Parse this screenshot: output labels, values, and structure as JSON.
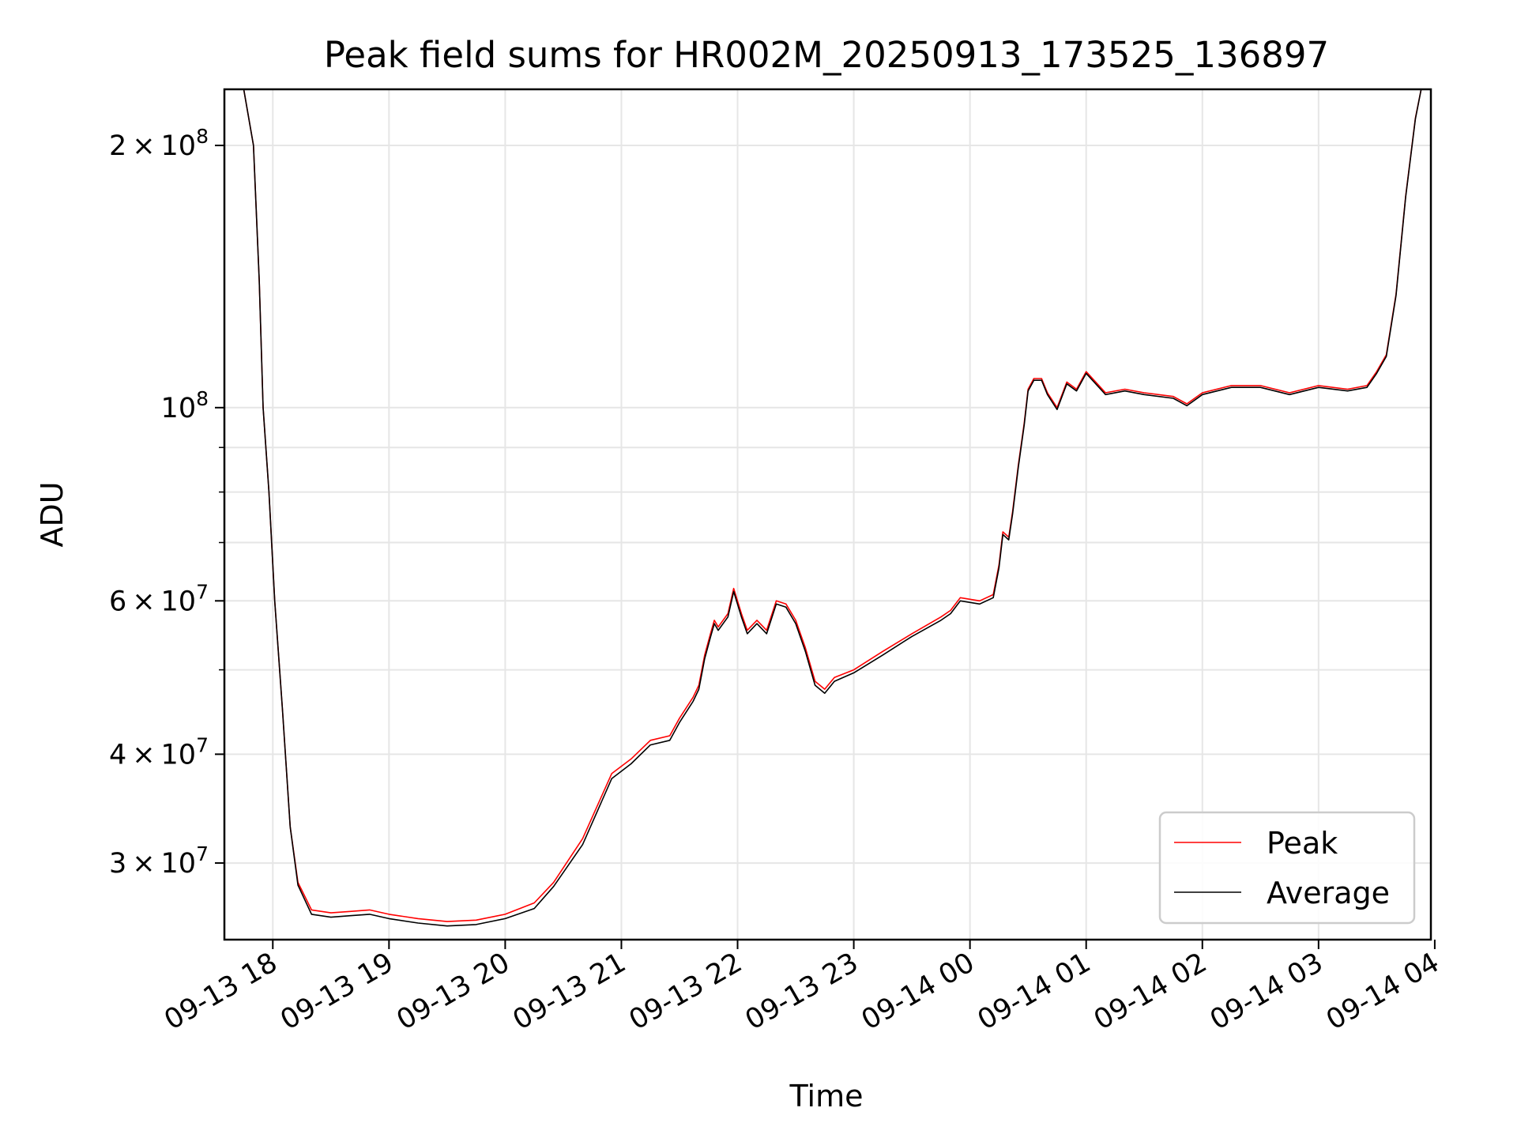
{
  "chart_data": {
    "type": "line",
    "title": "Peak field sums for HR002M_20250913_173525_136897",
    "xlabel": "Time",
    "ylabel": "ADU",
    "yscale": "log",
    "xlim": [
      "2025-09-13 17:35",
      "2025-09-14 03:58"
    ],
    "ylim": [
      24500000,
      232000000
    ],
    "grid": true,
    "legend_position": "lower-right",
    "x_ticks": [
      {
        "t": "2025-09-13 18:00",
        "label": "09-13 18"
      },
      {
        "t": "2025-09-13 19:00",
        "label": "09-13 19"
      },
      {
        "t": "2025-09-13 20:00",
        "label": "09-13 20"
      },
      {
        "t": "2025-09-13 21:00",
        "label": "09-13 21"
      },
      {
        "t": "2025-09-13 22:00",
        "label": "09-13 22"
      },
      {
        "t": "2025-09-13 23:00",
        "label": "09-13 23"
      },
      {
        "t": "2025-09-14 00:00",
        "label": "09-14 00"
      },
      {
        "t": "2025-09-14 01:00",
        "label": "09-14 01"
      },
      {
        "t": "2025-09-14 02:00",
        "label": "09-14 02"
      },
      {
        "t": "2025-09-14 03:00",
        "label": "09-14 03"
      },
      {
        "t": "2025-09-14 04:00",
        "label": "09-14 04"
      }
    ],
    "y_ticks_major": [
      {
        "v": 30000000,
        "mant": "3",
        "exp": "7"
      },
      {
        "v": 40000000,
        "mant": "4",
        "exp": "7"
      },
      {
        "v": 60000000,
        "mant": "6",
        "exp": "7"
      },
      {
        "v": 100000000,
        "mant": "",
        "exp": "8"
      },
      {
        "v": 200000000,
        "mant": "2",
        "exp": "8"
      }
    ],
    "y_ticks_minor": [
      50000000,
      70000000,
      80000000,
      90000000
    ],
    "series": [
      {
        "name": "Peak",
        "color": "#ff0000",
        "points": [
          [
            "2025-09-13 17:35",
            232000000
          ],
          [
            "2025-09-13 17:45",
            232000000
          ],
          [
            "2025-09-13 17:50",
            200000000
          ],
          [
            "2025-09-13 17:53",
            140000000
          ],
          [
            "2025-09-13 17:55",
            100000000
          ],
          [
            "2025-09-13 17:58",
            80000000
          ],
          [
            "2025-09-13 18:01",
            60000000
          ],
          [
            "2025-09-13 18:05",
            45000000
          ],
          [
            "2025-09-13 18:09",
            33000000
          ],
          [
            "2025-09-13 18:13",
            28500000
          ],
          [
            "2025-09-13 18:20",
            26500000
          ],
          [
            "2025-09-13 18:30",
            26300000
          ],
          [
            "2025-09-13 18:40",
            26400000
          ],
          [
            "2025-09-13 18:50",
            26500000
          ],
          [
            "2025-09-13 19:00",
            26200000
          ],
          [
            "2025-09-13 19:15",
            25900000
          ],
          [
            "2025-09-13 19:30",
            25700000
          ],
          [
            "2025-09-13 19:45",
            25800000
          ],
          [
            "2025-09-13 20:00",
            26200000
          ],
          [
            "2025-09-13 20:15",
            27000000
          ],
          [
            "2025-09-13 20:25",
            28500000
          ],
          [
            "2025-09-13 20:40",
            32000000
          ],
          [
            "2025-09-13 20:55",
            38000000
          ],
          [
            "2025-09-13 21:05",
            39500000
          ],
          [
            "2025-09-13 21:15",
            41500000
          ],
          [
            "2025-09-13 21:25",
            42000000
          ],
          [
            "2025-09-13 21:30",
            44000000
          ],
          [
            "2025-09-13 21:37",
            46500000
          ],
          [
            "2025-09-13 21:40",
            48000000
          ],
          [
            "2025-09-13 21:43",
            52000000
          ],
          [
            "2025-09-13 21:46",
            55000000
          ],
          [
            "2025-09-13 21:48",
            57000000
          ],
          [
            "2025-09-13 21:50",
            56000000
          ],
          [
            "2025-09-13 21:55",
            58000000
          ],
          [
            "2025-09-13 21:58",
            62000000
          ],
          [
            "2025-09-13 22:02",
            58000000
          ],
          [
            "2025-09-13 22:05",
            55500000
          ],
          [
            "2025-09-13 22:10",
            57000000
          ],
          [
            "2025-09-13 22:15",
            55500000
          ],
          [
            "2025-09-13 22:20",
            60000000
          ],
          [
            "2025-09-13 22:25",
            59500000
          ],
          [
            "2025-09-13 22:30",
            57000000
          ],
          [
            "2025-09-13 22:35",
            53000000
          ],
          [
            "2025-09-13 22:40",
            48500000
          ],
          [
            "2025-09-13 22:45",
            47500000
          ],
          [
            "2025-09-13 22:50",
            49000000
          ],
          [
            "2025-09-13 23:00",
            50000000
          ],
          [
            "2025-09-13 23:15",
            52500000
          ],
          [
            "2025-09-13 23:30",
            55000000
          ],
          [
            "2025-09-13 23:45",
            57500000
          ],
          [
            "2025-09-13 23:50",
            58500000
          ],
          [
            "2025-09-13 23:55",
            60500000
          ],
          [
            "2025-09-14 00:05",
            60000000
          ],
          [
            "2025-09-14 00:12",
            61000000
          ],
          [
            "2025-09-14 00:15",
            66000000
          ],
          [
            "2025-09-14 00:17",
            72000000
          ],
          [
            "2025-09-14 00:20",
            71000000
          ],
          [
            "2025-09-14 00:22",
            76000000
          ],
          [
            "2025-09-14 00:25",
            86000000
          ],
          [
            "2025-09-14 00:28",
            96000000
          ],
          [
            "2025-09-14 00:30",
            105000000
          ],
          [
            "2025-09-14 00:33",
            108000000
          ],
          [
            "2025-09-14 00:37",
            108000000
          ],
          [
            "2025-09-14 00:40",
            104000000
          ],
          [
            "2025-09-14 00:45",
            100000000
          ],
          [
            "2025-09-14 00:50",
            107000000
          ],
          [
            "2025-09-14 00:55",
            105000000
          ],
          [
            "2025-09-14 01:00",
            110000000
          ],
          [
            "2025-09-14 01:10",
            104000000
          ],
          [
            "2025-09-14 01:20",
            105000000
          ],
          [
            "2025-09-14 01:30",
            104000000
          ],
          [
            "2025-09-14 01:45",
            103000000
          ],
          [
            "2025-09-14 01:52",
            101000000
          ],
          [
            "2025-09-14 02:00",
            104000000
          ],
          [
            "2025-09-14 02:15",
            106000000
          ],
          [
            "2025-09-14 02:30",
            106000000
          ],
          [
            "2025-09-14 02:45",
            104000000
          ],
          [
            "2025-09-14 03:00",
            106000000
          ],
          [
            "2025-09-14 03:15",
            105000000
          ],
          [
            "2025-09-14 03:25",
            106000000
          ],
          [
            "2025-09-14 03:30",
            110000000
          ],
          [
            "2025-09-14 03:35",
            115000000
          ],
          [
            "2025-09-14 03:40",
            135000000
          ],
          [
            "2025-09-14 03:45",
            175000000
          ],
          [
            "2025-09-14 03:50",
            215000000
          ],
          [
            "2025-09-14 03:53",
            232000000
          ],
          [
            "2025-09-14 03:58",
            232000000
          ]
        ]
      },
      {
        "name": "Average",
        "color": "#000000",
        "points": [
          [
            "2025-09-13 17:35",
            232000000
          ],
          [
            "2025-09-13 17:45",
            232000000
          ],
          [
            "2025-09-13 17:50",
            200000000
          ],
          [
            "2025-09-13 17:53",
            140000000
          ],
          [
            "2025-09-13 17:55",
            100000000
          ],
          [
            "2025-09-13 17:58",
            80000000
          ],
          [
            "2025-09-13 18:01",
            60000000
          ],
          [
            "2025-09-13 18:05",
            45000000
          ],
          [
            "2025-09-13 18:09",
            33000000
          ],
          [
            "2025-09-13 18:13",
            28300000
          ],
          [
            "2025-09-13 18:20",
            26200000
          ],
          [
            "2025-09-13 18:30",
            26000000
          ],
          [
            "2025-09-13 18:40",
            26100000
          ],
          [
            "2025-09-13 18:50",
            26200000
          ],
          [
            "2025-09-13 19:00",
            25900000
          ],
          [
            "2025-09-13 19:15",
            25600000
          ],
          [
            "2025-09-13 19:30",
            25400000
          ],
          [
            "2025-09-13 19:45",
            25500000
          ],
          [
            "2025-09-13 20:00",
            25900000
          ],
          [
            "2025-09-13 20:15",
            26600000
          ],
          [
            "2025-09-13 20:25",
            28200000
          ],
          [
            "2025-09-13 20:40",
            31500000
          ],
          [
            "2025-09-13 20:55",
            37500000
          ],
          [
            "2025-09-13 21:05",
            39000000
          ],
          [
            "2025-09-13 21:15",
            41000000
          ],
          [
            "2025-09-13 21:25",
            41500000
          ],
          [
            "2025-09-13 21:30",
            43500000
          ],
          [
            "2025-09-13 21:37",
            46000000
          ],
          [
            "2025-09-13 21:40",
            47500000
          ],
          [
            "2025-09-13 21:43",
            51500000
          ],
          [
            "2025-09-13 21:46",
            54500000
          ],
          [
            "2025-09-13 21:48",
            56500000
          ],
          [
            "2025-09-13 21:50",
            55500000
          ],
          [
            "2025-09-13 21:55",
            57500000
          ],
          [
            "2025-09-13 21:58",
            61500000
          ],
          [
            "2025-09-13 22:02",
            57500000
          ],
          [
            "2025-09-13 22:05",
            55000000
          ],
          [
            "2025-09-13 22:10",
            56500000
          ],
          [
            "2025-09-13 22:15",
            55000000
          ],
          [
            "2025-09-13 22:20",
            59500000
          ],
          [
            "2025-09-13 22:25",
            59000000
          ],
          [
            "2025-09-13 22:30",
            56500000
          ],
          [
            "2025-09-13 22:35",
            52500000
          ],
          [
            "2025-09-13 22:40",
            48000000
          ],
          [
            "2025-09-13 22:45",
            47000000
          ],
          [
            "2025-09-13 22:50",
            48500000
          ],
          [
            "2025-09-13 23:00",
            49600000
          ],
          [
            "2025-09-13 23:15",
            52000000
          ],
          [
            "2025-09-13 23:30",
            54600000
          ],
          [
            "2025-09-13 23:45",
            57000000
          ],
          [
            "2025-09-13 23:50",
            58000000
          ],
          [
            "2025-09-13 23:55",
            60000000
          ],
          [
            "2025-09-14 00:05",
            59500000
          ],
          [
            "2025-09-14 00:12",
            60500000
          ],
          [
            "2025-09-14 00:15",
            65500000
          ],
          [
            "2025-09-14 00:17",
            71500000
          ],
          [
            "2025-09-14 00:20",
            70500000
          ],
          [
            "2025-09-14 00:22",
            75500000
          ],
          [
            "2025-09-14 00:25",
            85500000
          ],
          [
            "2025-09-14 00:28",
            95500000
          ],
          [
            "2025-09-14 00:30",
            104500000
          ],
          [
            "2025-09-14 00:33",
            107500000
          ],
          [
            "2025-09-14 00:37",
            107500000
          ],
          [
            "2025-09-14 00:40",
            103500000
          ],
          [
            "2025-09-14 00:45",
            99500000
          ],
          [
            "2025-09-14 00:50",
            106500000
          ],
          [
            "2025-09-14 00:55",
            104500000
          ],
          [
            "2025-09-14 01:00",
            109500000
          ],
          [
            "2025-09-14 01:10",
            103500000
          ],
          [
            "2025-09-14 01:20",
            104500000
          ],
          [
            "2025-09-14 01:30",
            103500000
          ],
          [
            "2025-09-14 01:45",
            102500000
          ],
          [
            "2025-09-14 01:52",
            100500000
          ],
          [
            "2025-09-14 02:00",
            103500000
          ],
          [
            "2025-09-14 02:15",
            105500000
          ],
          [
            "2025-09-14 02:30",
            105500000
          ],
          [
            "2025-09-14 02:45",
            103500000
          ],
          [
            "2025-09-14 03:00",
            105500000
          ],
          [
            "2025-09-14 03:15",
            104500000
          ],
          [
            "2025-09-14 03:25",
            105500000
          ],
          [
            "2025-09-14 03:30",
            109500000
          ],
          [
            "2025-09-14 03:35",
            114500000
          ],
          [
            "2025-09-14 03:40",
            134500000
          ],
          [
            "2025-09-14 03:45",
            174500000
          ],
          [
            "2025-09-14 03:50",
            214500000
          ],
          [
            "2025-09-14 03:53",
            232000000
          ],
          [
            "2025-09-14 03:58",
            232000000
          ]
        ]
      }
    ]
  }
}
